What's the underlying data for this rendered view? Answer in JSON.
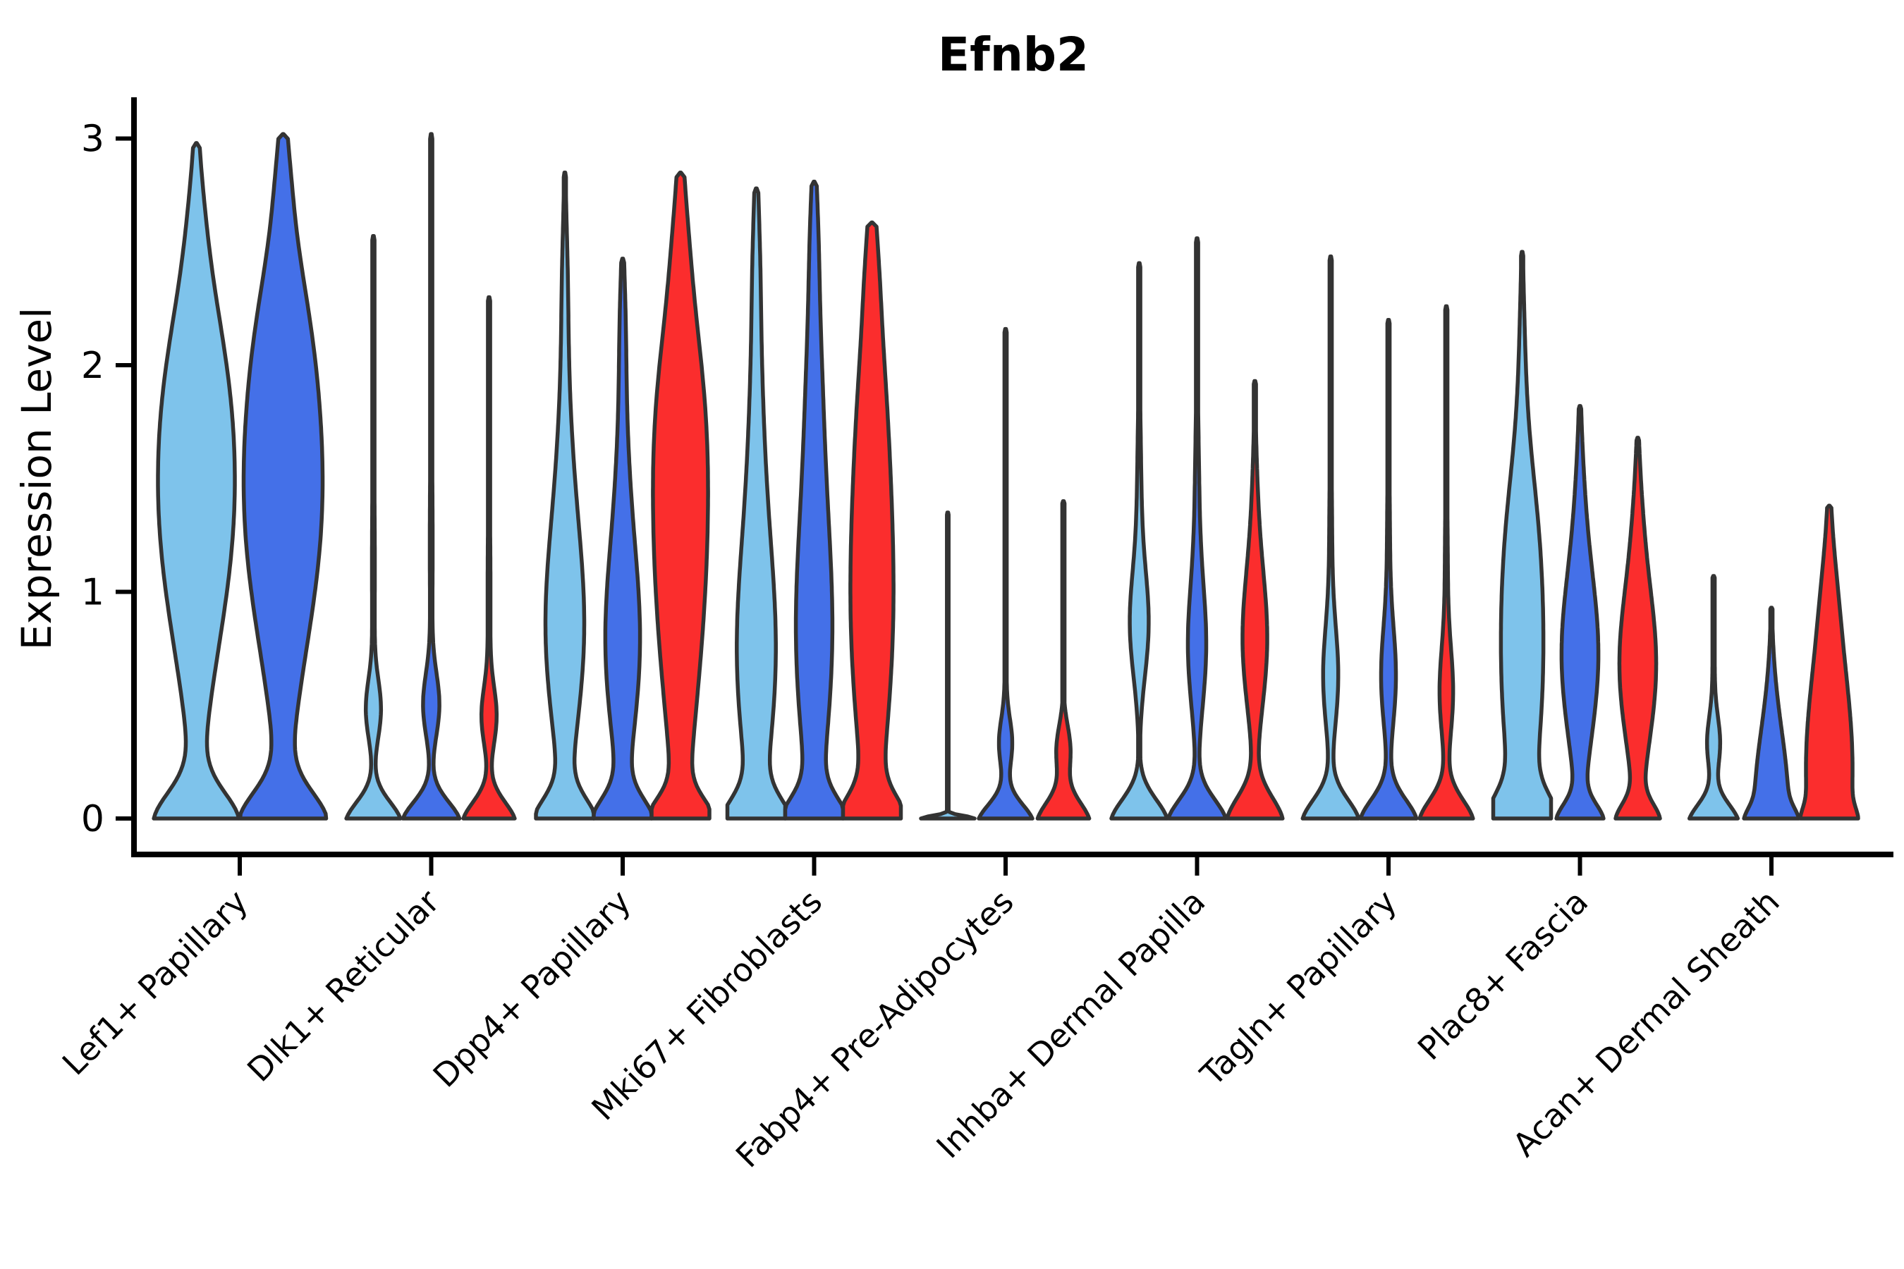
{
  "title": "Efnb2",
  "y_axis": {
    "label": "Expression Level",
    "tick_labels": [
      "0",
      "1",
      "2",
      "3"
    ]
  },
  "categories": [
    "Lef1+ Papillary",
    "Dlk1+ Reticular",
    "Dpp4+ Papillary",
    "Mki67+ Fibroblasts",
    "Fabp4+ Pre-Adipocytes",
    "Inhba+ Dermal Papilla",
    "Tagln+ Papillary",
    "Plac8+ Fascia",
    "Acan+ Dermal Sheath"
  ],
  "palette": {
    "light_blue": "#7EC3EB",
    "dark_blue": "#4470E8",
    "red": "#FB2D2D",
    "outline": "#333333",
    "axis": "#000000"
  },
  "chart_data": {
    "type": "violin",
    "title": "Efnb2",
    "xlabel": "",
    "ylabel": "Expression Level",
    "ylim": [
      0,
      3.1
    ],
    "yticks": [
      0,
      1,
      2,
      3
    ],
    "grid": false,
    "legend": "none",
    "categories": [
      "Lef1+ Papillary",
      "Dlk1+ Reticular",
      "Dpp4+ Papillary",
      "Mki67+ Fibroblasts",
      "Fabp4+ Pre-Adipocytes",
      "Inhba+ Dermal Papilla",
      "Tagln+ Papillary",
      "Plac8+ Fascia",
      "Acan+ Dermal Sheath"
    ],
    "series_colors": [
      "#7EC3EB",
      "#4470E8",
      "#FB2D2D"
    ],
    "note": "Each violin: category index, series index (0=light blue, 1=dark blue, 2=red), max expression value at tip, and width profile as gaussian components [half_width_px, center_value, sigma_value]. Category 0 has no red violin.",
    "violins": [
      {
        "category": 0,
        "series": 0,
        "max": 2.98,
        "profile": [
          [
            57,
            -0.03,
            0.14
          ],
          [
            50,
            1.35,
            0.62
          ],
          [
            14,
            2.05,
            0.42
          ],
          [
            3,
            2.7,
            0.25
          ]
        ]
      },
      {
        "category": 0,
        "series": 1,
        "max": 3.02,
        "profile": [
          [
            58,
            -0.03,
            0.14
          ],
          [
            54,
            1.4,
            0.66
          ],
          [
            12,
            2.2,
            0.4
          ],
          [
            3,
            2.85,
            0.2
          ]
        ]
      },
      {
        "category": 1,
        "series": 0,
        "max": 2.57,
        "profile": [
          [
            40,
            -0.03,
            0.1
          ],
          [
            10,
            0.48,
            0.13
          ],
          [
            2,
            1.1,
            0.45
          ]
        ]
      },
      {
        "category": 1,
        "series": 1,
        "max": 3.02,
        "profile": [
          [
            42,
            -0.03,
            0.1
          ],
          [
            11,
            0.5,
            0.14
          ],
          [
            2,
            1.2,
            0.45
          ]
        ]
      },
      {
        "category": 1,
        "series": 2,
        "max": 2.3,
        "profile": [
          [
            38,
            -0.03,
            0.1
          ],
          [
            10,
            0.45,
            0.13
          ],
          [
            2,
            1.0,
            0.4
          ]
        ]
      },
      {
        "category": 2,
        "series": 0,
        "max": 2.85,
        "profile": [
          [
            41,
            -0.03,
            0.11
          ],
          [
            25,
            0.8,
            0.45
          ],
          [
            7,
            1.55,
            0.5
          ],
          [
            2.5,
            2.4,
            0.28
          ]
        ]
      },
      {
        "category": 2,
        "series": 1,
        "max": 2.47,
        "profile": [
          [
            41,
            -0.03,
            0.11
          ],
          [
            23,
            0.75,
            0.42
          ],
          [
            6,
            1.5,
            0.45
          ],
          [
            2.5,
            2.2,
            0.25
          ]
        ]
      },
      {
        "category": 2,
        "series": 2,
        "max": 2.85,
        "profile": [
          [
            39,
            -0.02,
            0.1
          ],
          [
            34,
            1.15,
            0.72
          ],
          [
            13,
            1.9,
            0.45
          ],
          [
            3,
            2.6,
            0.25
          ]
        ]
      },
      {
        "category": 3,
        "series": 0,
        "max": 2.78,
        "profile": [
          [
            41,
            -0.03,
            0.11
          ],
          [
            26,
            0.7,
            0.5
          ],
          [
            8,
            1.7,
            0.55
          ],
          [
            2.5,
            2.5,
            0.28
          ]
        ]
      },
      {
        "category": 3,
        "series": 1,
        "max": 2.81,
        "profile": [
          [
            41,
            -0.03,
            0.11
          ],
          [
            25,
            0.8,
            0.55
          ],
          [
            9,
            1.9,
            0.5
          ],
          [
            2.5,
            2.6,
            0.25
          ]
        ]
      },
      {
        "category": 3,
        "series": 2,
        "max": 2.63,
        "profile": [
          [
            38,
            -0.02,
            0.11
          ],
          [
            29,
            0.9,
            0.65
          ],
          [
            11,
            1.9,
            0.48
          ],
          [
            2.5,
            2.45,
            0.22
          ]
        ]
      },
      {
        "category": 4,
        "series": 0,
        "max": 1.35,
        "floor": 1.2,
        "profile": [
          [
            38,
            0,
            0.012
          ]
        ]
      },
      {
        "category": 4,
        "series": 1,
        "max": 2.16,
        "profile": [
          [
            40,
            -0.03,
            0.09
          ],
          [
            9,
            0.33,
            0.11
          ],
          [
            1.5,
            0.8,
            0.3
          ]
        ]
      },
      {
        "category": 4,
        "series": 2,
        "max": 1.4,
        "profile": [
          [
            38,
            -0.03,
            0.1
          ],
          [
            10,
            0.3,
            0.11
          ]
        ]
      },
      {
        "category": 5,
        "series": 0,
        "max": 2.45,
        "profile": [
          [
            41,
            -0.03,
            0.11
          ],
          [
            12,
            0.85,
            0.23
          ],
          [
            3,
            1.35,
            0.4
          ]
        ]
      },
      {
        "category": 5,
        "series": 1,
        "max": 2.56,
        "profile": [
          [
            42,
            -0.03,
            0.11
          ],
          [
            12,
            0.75,
            0.27
          ],
          [
            3,
            1.35,
            0.4
          ]
        ]
      },
      {
        "category": 5,
        "series": 2,
        "max": 1.93,
        "profile": [
          [
            40,
            -0.03,
            0.12
          ],
          [
            17,
            0.78,
            0.3
          ],
          [
            3,
            1.35,
            0.3
          ]
        ]
      },
      {
        "category": 6,
        "series": 0,
        "max": 2.48,
        "profile": [
          [
            41,
            -0.03,
            0.11
          ],
          [
            10,
            0.62,
            0.22
          ],
          [
            2,
            1.2,
            0.4
          ]
        ]
      },
      {
        "category": 6,
        "series": 1,
        "max": 2.2,
        "profile": [
          [
            41,
            -0.03,
            0.11
          ],
          [
            10,
            0.62,
            0.22
          ],
          [
            2,
            1.2,
            0.35
          ]
        ]
      },
      {
        "category": 6,
        "series": 2,
        "max": 2.26,
        "profile": [
          [
            39,
            -0.03,
            0.11
          ],
          [
            9,
            0.55,
            0.2
          ],
          [
            2,
            1.1,
            0.35
          ]
        ]
      },
      {
        "category": 7,
        "series": 0,
        "max": 2.5,
        "profile": [
          [
            40,
            -0.03,
            0.12
          ],
          [
            27,
            0.6,
            0.52
          ],
          [
            12,
            1.3,
            0.38
          ],
          [
            2.5,
            2.1,
            0.3
          ]
        ]
      },
      {
        "category": 7,
        "series": 1,
        "max": 1.82,
        "profile": [
          [
            30,
            -0.02,
            0.08
          ],
          [
            26,
            0.72,
            0.38
          ],
          [
            3,
            1.45,
            0.28
          ]
        ]
      },
      {
        "category": 7,
        "series": 2,
        "max": 1.68,
        "profile": [
          [
            28,
            -0.02,
            0.08
          ],
          [
            26,
            0.68,
            0.36
          ],
          [
            3,
            1.35,
            0.24
          ]
        ]
      },
      {
        "category": 8,
        "series": 0,
        "max": 1.07,
        "profile": [
          [
            36,
            -0.03,
            0.09
          ],
          [
            9,
            0.33,
            0.12
          ],
          [
            1.5,
            0.7,
            0.2
          ]
        ]
      },
      {
        "category": 8,
        "series": 1,
        "max": 0.93,
        "profile": [
          [
            16,
            -0.02,
            0.06
          ],
          [
            24,
            0.05,
            0.34
          ]
        ]
      },
      {
        "category": 8,
        "series": 2,
        "max": 1.38,
        "profile": [
          [
            12,
            -0.02,
            0.06
          ],
          [
            33,
            0.22,
            0.5
          ],
          [
            3,
            1.0,
            0.22
          ]
        ]
      }
    ]
  }
}
